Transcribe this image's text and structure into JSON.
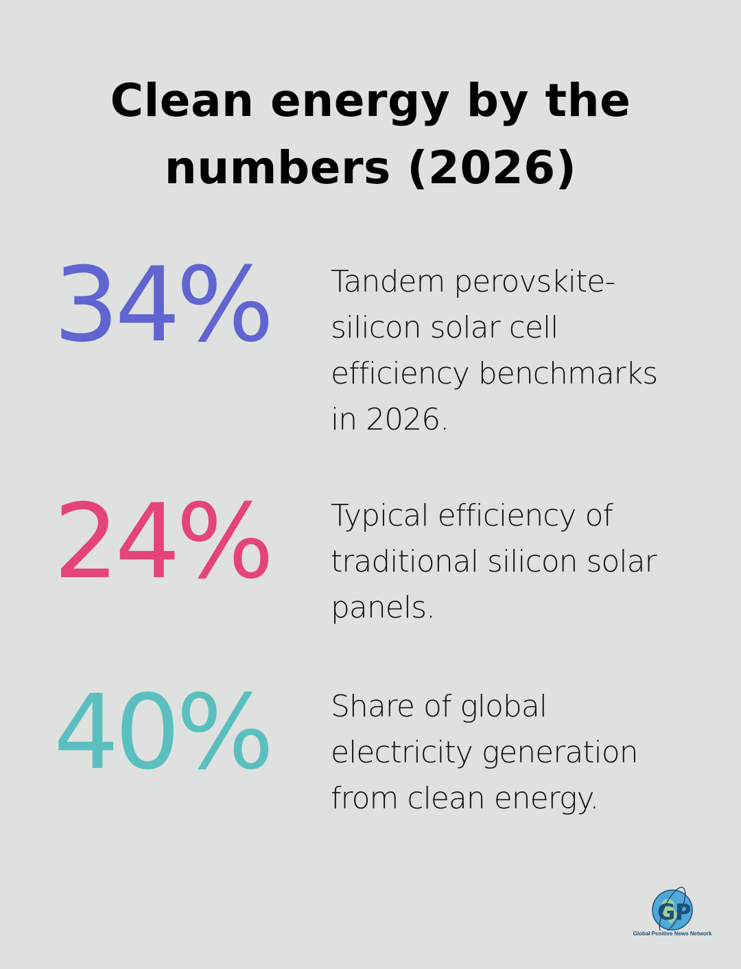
{
  "title_line1": "Clean energy by the",
  "title_line2": "numbers (2026)",
  "stats": [
    {
      "value": "34%",
      "color": "#6065d1",
      "description": "Tandem perovskite-silicon solar cell efficiency benchmarks in 2026."
    },
    {
      "value": "24%",
      "color": "#e4447a",
      "description": "Typical efficiency of traditional silicon solar panels."
    },
    {
      "value": "40%",
      "color": "#5bbfbf",
      "description": "Share of global electricity generation from clean energy."
    }
  ],
  "logo": {
    "letters": "G P",
    "name": "Global Positive News Network",
    "icon": "globe-icon"
  }
}
